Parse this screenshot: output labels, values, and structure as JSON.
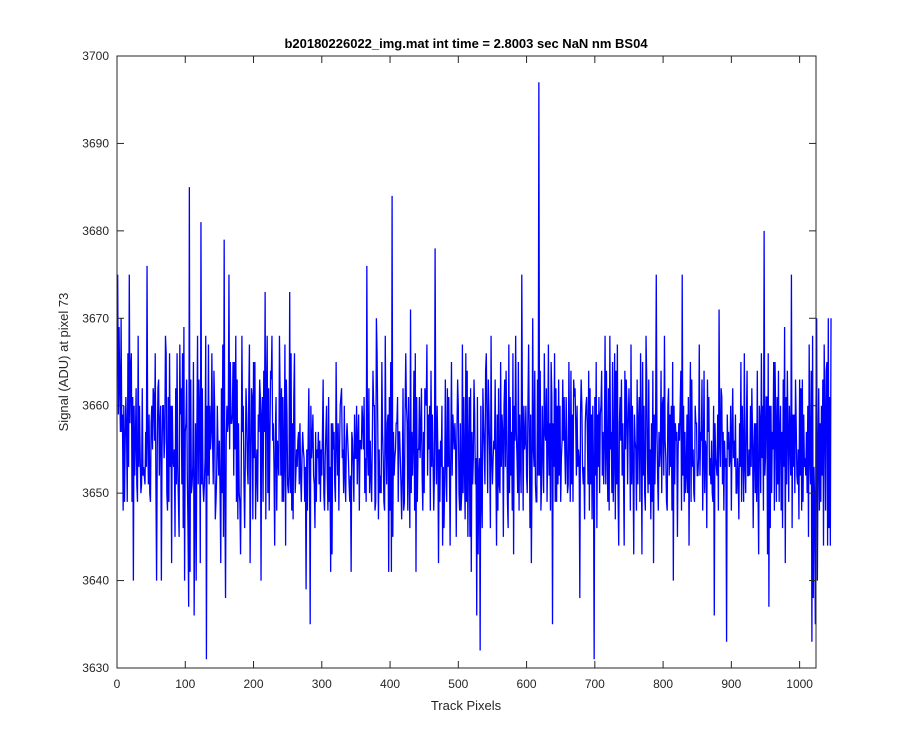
{
  "chart_data": {
    "type": "line",
    "title": "b20180226022_img.mat int time = 2.8003 sec  NaN nm BS04",
    "xlabel": "Track Pixels",
    "ylabel": "Signal (ADU) at pixel 73",
    "xlim": [
      0,
      1024
    ],
    "ylim": [
      3630,
      3700
    ],
    "xticks": [
      0,
      100,
      200,
      300,
      400,
      500,
      600,
      700,
      800,
      900,
      1000
    ],
    "yticks": [
      3630,
      3640,
      3650,
      3660,
      3670,
      3680,
      3690,
      3700
    ],
    "xtick_labels": [
      "0",
      "100",
      "200",
      "300",
      "400",
      "500",
      "600",
      "700",
      "800",
      "900",
      "1000"
    ],
    "ytick_labels": [
      "3630",
      "3640",
      "3650",
      "3660",
      "3670",
      "3680",
      "3690",
      "3700"
    ],
    "grid": false,
    "series": [
      {
        "color": "#0000ff",
        "x_start": 1,
        "x_step": 1,
        "values": [
          3675,
          3659,
          3669,
          3662,
          3657,
          3670,
          3657,
          3659,
          3648,
          3660,
          3649,
          3656,
          3661,
          3657,
          3649,
          3666,
          3653,
          3675,
          3658,
          3664,
          3666,
          3649,
          3661,
          3640,
          3660,
          3652,
          3656,
          3662,
          3651,
          3649,
          3668,
          3653,
          3660,
          3654,
          3650,
          3651,
          3662,
          3652,
          3653,
          3652,
          3651,
          3657,
          3653,
          3676,
          3656,
          3651,
          3659,
          3650,
          3649,
          3658,
          3660,
          3655,
          3662,
          3661,
          3656,
          3666,
          3651,
          3640,
          3655,
          3662,
          3663,
          3652,
          3658,
          3660,
          3640,
          3655,
          3660,
          3660,
          3654,
          3656,
          3668,
          3666,
          3650,
          3648,
          3661,
          3649,
          3666,
          3653,
          3660,
          3642,
          3660,
          3654,
          3653,
          3655,
          3645,
          3662,
          3651,
          3666,
          3653,
          3649,
          3645,
          3667,
          3659,
          3662,
          3651,
          3666,
          3646,
          3669,
          3640,
          3657,
          3658,
          3663,
          3652,
          3646,
          3637,
          3685,
          3641,
          3663,
          3650,
          3651,
          3653,
          3665,
          3636,
          3649,
          3658,
          3640,
          3657,
          3668,
          3651,
          3663,
          3659,
          3642,
          3681,
          3651,
          3662,
          3651,
          3649,
          3651,
          3654,
          3668,
          3631,
          3660,
          3652,
          3667,
          3651,
          3660,
          3655,
          3657,
          3666,
          3656,
          3651,
          3664,
          3660,
          3647,
          3649,
          3652,
          3660,
          3655,
          3652,
          3656,
          3650,
          3642,
          3662,
          3650,
          3667,
          3645,
          3679,
          3650,
          3638,
          3656,
          3660,
          3657,
          3658,
          3675,
          3655,
          3665,
          3658,
          3658,
          3659,
          3665,
          3652,
          3665,
          3655,
          3668,
          3649,
          3663,
          3647,
          3658,
          3650,
          3649,
          3643,
          3653,
          3668,
          3657,
          3660,
          3651,
          3646,
          3654,
          3662,
          3659,
          3653,
          3651,
          3661,
          3667,
          3642,
          3653,
          3662,
          3661,
          3647,
          3665,
          3654,
          3665,
          3647,
          3653,
          3655,
          3649,
          3659,
          3657,
          3663,
          3661,
          3640,
          3659,
          3661,
          3649,
          3664,
          3657,
          3673,
          3647,
          3662,
          3668,
          3650,
          3662,
          3648,
          3656,
          3664,
          3663,
          3668,
          3656,
          3658,
          3653,
          3644,
          3657,
          3661,
          3648,
          3656,
          3654,
          3652,
          3668,
          3661,
          3652,
          3662,
          3649,
          3661,
          3649,
          3654,
          3667,
          3644,
          3663,
          3659,
          3651,
          3650,
          3652,
          3673,
          3650,
          3666,
          3648,
          3658,
          3647,
          3661,
          3666,
          3650,
          3652,
          3655,
          3653,
          3656,
          3657,
          3651,
          3658,
          3652,
          3649,
          3654,
          3657,
          3655,
          3654,
          3649,
          3653,
          3639,
          3655,
          3648,
          3656,
          3662,
          3653,
          3635,
          3660,
          3654,
          3656,
          3659,
          3652,
          3651,
          3646,
          3657,
          3649,
          3655,
          3654,
          3657,
          3651,
          3656,
          3649,
          3655,
          3652,
          3657,
          3663,
          3650,
          3648,
          3654,
          3657,
          3660,
          3652,
          3648,
          3661,
          3649,
          3653,
          3641,
          3658,
          3643,
          3658,
          3655,
          3657,
          3651,
          3649,
          3665,
          3656,
          3652,
          3658,
          3648,
          3655,
          3660,
          3661,
          3662,
          3654,
          3655,
          3650,
          3660,
          3652,
          3649,
          3656,
          3658,
          3656,
          3654,
          3651,
          3649,
          3652,
          3641,
          3657,
          3656,
          3653,
          3649,
          3659,
          3654,
          3654,
          3660,
          3651,
          3656,
          3659,
          3648,
          3656,
          3656,
          3655,
          3660,
          3658,
          3655,
          3661,
          3650,
          3654,
          3649,
          3676,
          3655,
          3652,
          3662,
          3650,
          3656,
          3652,
          3649,
          3656,
          3664,
          3660,
          3660,
          3648,
          3649,
          3670,
          3666,
          3658,
          3647,
          3655,
          3650,
          3652,
          3650,
          3665,
          3657,
          3654,
          3649,
          3648,
          3668,
          3656,
          3651,
          3658,
          3659,
          3641,
          3661,
          3648,
          3665,
          3641,
          3684,
          3645,
          3657,
          3652,
          3654,
          3655,
          3658,
          3658,
          3661,
          3649,
          3657,
          3657,
          3654,
          3651,
          3647,
          3652,
          3662,
          3648,
          3649,
          3659,
          3666,
          3660,
          3658,
          3648,
          3661,
          3653,
          3646,
          3671,
          3650,
          3657,
          3652,
          3656,
          3664,
          3648,
          3666,
          3641,
          3661,
          3649,
          3655,
          3655,
          3661,
          3654,
          3657,
          3662,
          3652,
          3648,
          3657,
          3650,
          3662,
          3661,
          3660,
          3667,
          3652,
          3659,
          3655,
          3660,
          3648,
          3664,
          3653,
          3659,
          3654,
          3648,
          3652,
          3678,
          3657,
          3651,
          3660,
          3655,
          3642,
          3655,
          3649,
          3656,
          3653,
          3660,
          3644,
          3653,
          3646,
          3651,
          3663,
          3653,
          3649,
          3662,
          3653,
          3661,
          3653,
          3644,
          3655,
          3665,
          3652,
          3659,
          3657,
          3655,
          3658,
          3655,
          3645,
          3657,
          3663,
          3660,
          3650,
          3648,
          3658,
          3648,
          3650,
          3667,
          3650,
          3661,
          3653,
          3647,
          3666,
          3649,
          3664,
          3645,
          3655,
          3661,
          3645,
          3662,
          3641,
          3657,
          3651,
          3654,
          3663,
          3659,
          3651,
          3654,
          3636,
          3661,
          3643,
          3652,
          3654,
          3632,
          3660,
          3650,
          3646,
          3662,
          3658,
          3655,
          3651,
          3664,
          3666,
          3658,
          3650,
          3663,
          3659,
          3654,
          3646,
          3668,
          3654,
          3651,
          3654,
          3656,
          3655,
          3663,
          3653,
          3644,
          3659,
          3648,
          3662,
          3651,
          3650,
          3665,
          3653,
          3659,
          3657,
          3645,
          3660,
          3663,
          3653,
          3664,
          3657,
          3649,
          3646,
          3667,
          3650,
          3661,
          3652,
          3657,
          3648,
          3666,
          3643,
          3660,
          3656,
          3668,
          3657,
          3654,
          3650,
          3665,
          3648,
          3659,
          3654,
          3650,
          3675,
          3658,
          3648,
          3660,
          3655,
          3656,
          3660,
          3652,
          3650,
          3660,
          3667,
          3657,
          3646,
          3659,
          3642,
          3652,
          3670,
          3655,
          3653,
          3664,
          3651,
          3649,
          3649,
          3663,
          3652,
          3697,
          3652,
          3664,
          3648,
          3651,
          3660,
          3655,
          3650,
          3666,
          3657,
          3656,
          3662,
          3649,
          3655,
          3667,
          3652,
          3658,
          3648,
          3665,
          3661,
          3635,
          3658,
          3653,
          3666,
          3649,
          3662,
          3649,
          3660,
          3651,
          3663,
          3652,
          3660,
          3649,
          3654,
          3656,
          3663,
          3656,
          3661,
          3655,
          3651,
          3661,
          3656,
          3650,
          3651,
          3665,
          3656,
          3649,
          3664,
          3651,
          3659,
          3649,
          3663,
          3661,
          3662,
          3658,
          3652,
          3660,
          3653,
          3655,
          3654,
          3638,
          3659,
          3663,
          3660,
          3653,
          3651,
          3653,
          3647,
          3658,
          3660,
          3661,
          3657,
          3651,
          3664,
          3648,
          3662,
          3651,
          3659,
          3647,
          3660,
          3653,
          3631,
          3661,
          3652,
          3665,
          3646,
          3659,
          3653,
          3661,
          3650,
          3659,
          3660,
          3664,
          3652,
          3657,
          3651,
          3656,
          3668,
          3651,
          3664,
          3655,
          3649,
          3662,
          3648,
          3668,
          3655,
          3657,
          3650,
          3665,
          3649,
          3654,
          3666,
          3647,
          3664,
          3651,
          3667,
          3650,
          3644,
          3658,
          3661,
          3656,
          3663,
          3652,
          3658,
          3652,
          3644,
          3664,
          3655,
          3663,
          3660,
          3651,
          3658,
          3662,
          3658,
          3648,
          3667,
          3651,
          3660,
          3653,
          3643,
          3659,
          3656,
          3655,
          3648,
          3663,
          3651,
          3658,
          3661,
          3649,
          3666,
          3657,
          3643,
          3665,
          3652,
          3660,
          3650,
          3648,
          3668,
          3663,
          3654,
          3650,
          3663,
          3651,
          3655,
          3647,
          3658,
          3649,
          3664,
          3642,
          3659,
          3651,
          3657,
          3675,
          3657,
          3652,
          3648,
          3657,
          3653,
          3655,
          3664,
          3650,
          3660,
          3661,
          3652,
          3668,
          3656,
          3654,
          3649,
          3648,
          3660,
          3662,
          3652,
          3659,
          3653,
          3660,
          3648,
          3665,
          3640,
          3660,
          3651,
          3658,
          3656,
          3657,
          3645,
          3655,
          3658,
          3656,
          3660,
          3664,
          3648,
          3675,
          3652,
          3660,
          3649,
          3657,
          3650,
          3652,
          3659,
          3650,
          3661,
          3644,
          3657,
          3665,
          3649,
          3663,
          3653,
          3655,
          3650,
          3649,
          3660,
          3658,
          3658,
          3652,
          3652,
          3654,
          3667,
          3652,
          3657,
          3656,
          3663,
          3648,
          3654,
          3664,
          3650,
          3656,
          3655,
          3646,
          3663,
          3657,
          3661,
          3652,
          3654,
          3651,
          3656,
          3650,
          3649,
          3660,
          3636,
          3658,
          3654,
          3653,
          3652,
          3659,
          3648,
          3671,
          3656,
          3653,
          3662,
          3661,
          3651,
          3657,
          3648,
          3656,
          3653,
          3654,
          3633,
          3659,
          3655,
          3657,
          3653,
          3654,
          3660,
          3648,
          3657,
          3662,
          3654,
          3656,
          3653,
          3659,
          3650,
          3650,
          3654,
          3652,
          3647,
          3658,
          3653,
          3665,
          3649,
          3660,
          3655,
          3649,
          3666,
          3653,
          3650,
          3658,
          3664,
          3652,
          3652,
          3655,
          3652,
          3660,
          3653,
          3662,
          3657,
          3646,
          3655,
          3658,
          3650,
          3658,
          3649,
          3664,
          3651,
          3643,
          3660,
          3658,
          3650,
          3666,
          3654,
          3660,
          3648,
          3680,
          3652,
          3654,
          3661,
          3661,
          3643,
          3666,
          3637,
          3660,
          3646,
          3660,
          3650,
          3657,
          3655,
          3665,
          3648,
          3665,
          3658,
          3649,
          3661,
          3651,
          3664,
          3649,
          3657,
          3660,
          3648,
          3657,
          3646,
          3663,
          3653,
          3669,
          3642,
          3661,
          3651,
          3664,
          3657,
          3649,
          3660,
          3656,
          3652,
          3675,
          3646,
          3659,
          3653,
          3659,
          3650,
          3663,
          3658,
          3652,
          3651,
          3655,
          3647,
          3663,
          3652,
          3662,
          3648,
          3663,
          3649,
          3659,
          3653,
          3654,
          3652,
          3657,
          3650,
          3660,
          3645,
          3667,
          3654,
          3651,
          3664,
          3633,
          3668,
          3638,
          3653,
          3649,
          3635,
          3660,
          3670,
          3640,
          3654,
          3662,
          3648,
          3658,
          3649,
          3660,
          3652,
          3663,
          3644,
          3667,
          3659,
          3648,
          3664,
          3665,
          3644,
          3670,
          3646,
          3661,
          3644,
          3670
        ]
      }
    ]
  }
}
